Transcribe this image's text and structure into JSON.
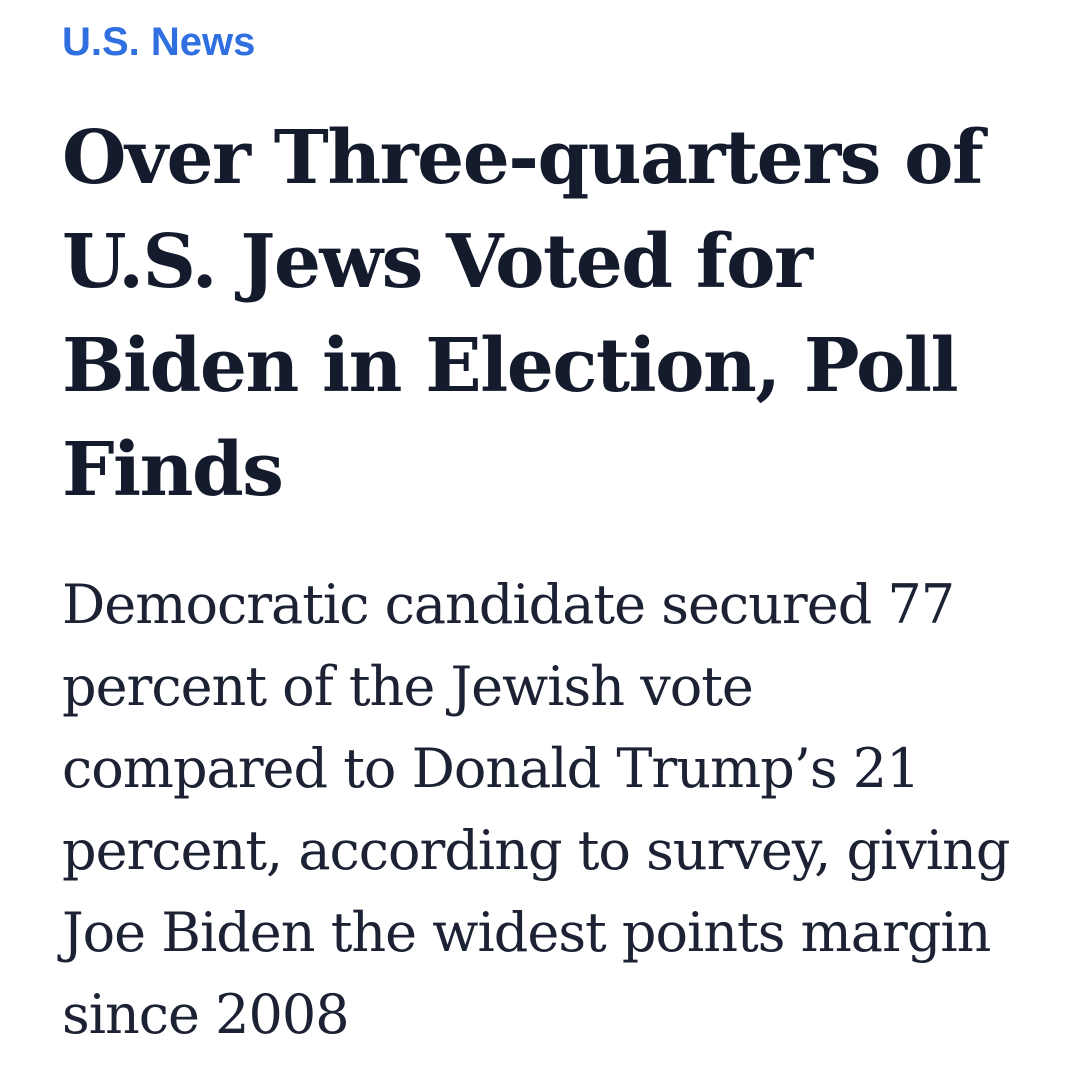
{
  "section": {
    "label": "U.S. News",
    "color": "#2f6fe0"
  },
  "article": {
    "headline": "Over Three-quarters of U.S. Jews Voted for Biden in Election, Poll Finds",
    "dek": "Democratic candidate secured 77 percent of the Jewish vote compared to Donald Trump’s 21 percent, according to survey, giving Joe Biden the widest points margin since 2008"
  },
  "colors": {
    "background": "#ffffff",
    "headline_text": "#141b2d",
    "body_text": "#1c2233"
  }
}
